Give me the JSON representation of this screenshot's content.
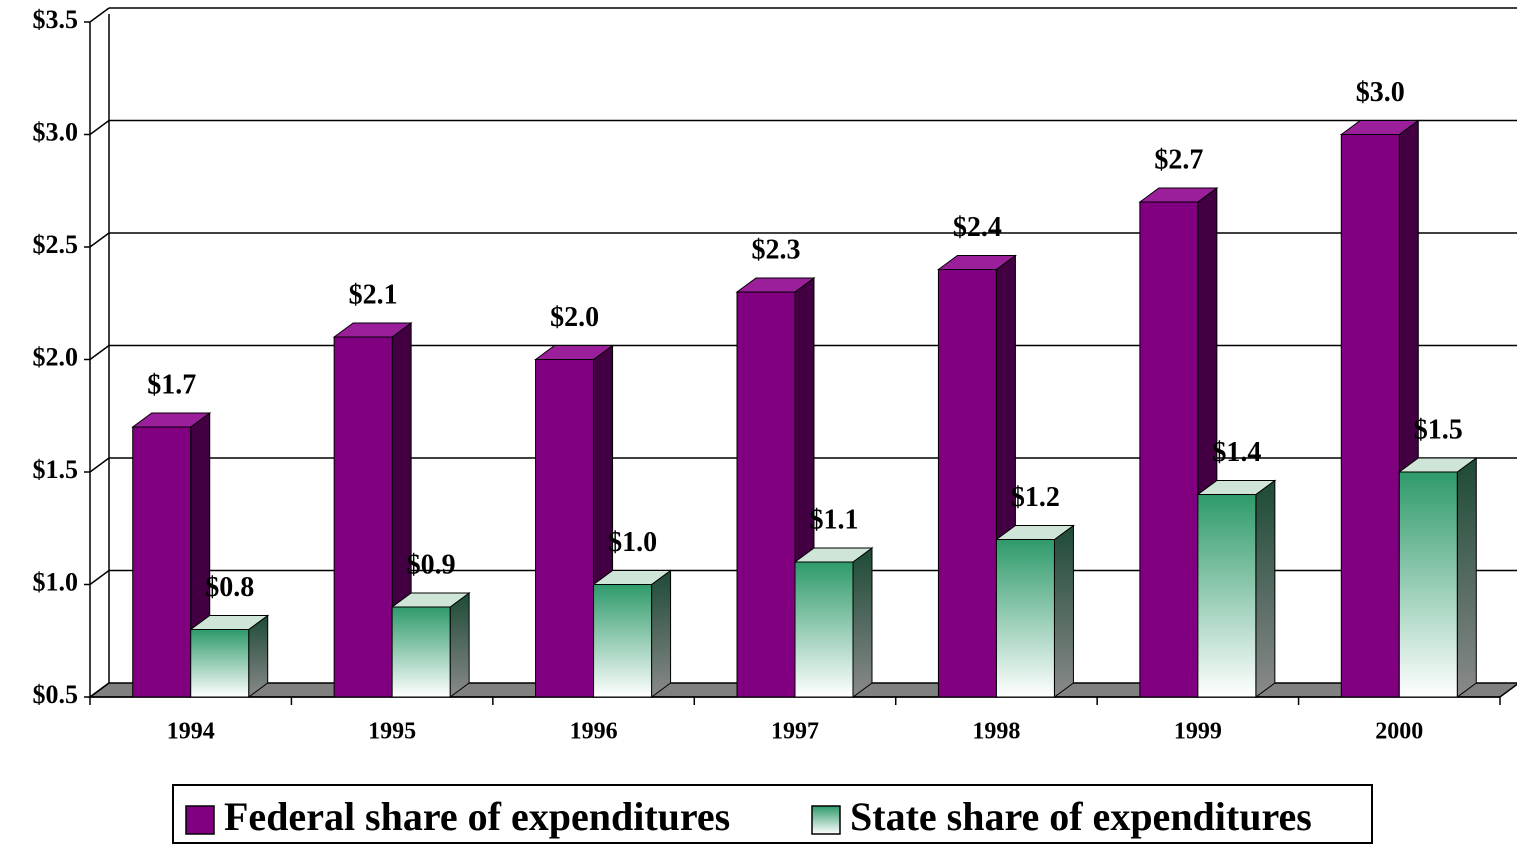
{
  "chart_data": {
    "type": "bar3d",
    "categories": [
      "1994",
      "1995",
      "1996",
      "1997",
      "1998",
      "1999",
      "2000"
    ],
    "series": [
      {
        "name": "Federal share of expenditures",
        "color": "#800080",
        "values": [
          1.7,
          2.1,
          2.0,
          2.3,
          2.4,
          2.7,
          3.0
        ],
        "value_labels": [
          "$1.7",
          "$2.1",
          "$2.0",
          "$2.3",
          "$2.4",
          "$2.7",
          "$3.0"
        ]
      },
      {
        "name": "State share of expenditures",
        "color": "#3a9e72",
        "values": [
          0.8,
          0.9,
          1.0,
          1.1,
          1.2,
          1.4,
          1.5
        ],
        "value_labels": [
          "$0.8",
          "$0.9",
          "$1.0",
          "$1.1",
          "$1.2",
          "$1.4",
          "$1.5"
        ]
      }
    ],
    "ylim": [
      0.5,
      3.5
    ],
    "yticks": [
      {
        "value": 0.5,
        "label": "$0.5"
      },
      {
        "value": 1.0,
        "label": "$1.0"
      },
      {
        "value": 1.5,
        "label": "$1.5"
      },
      {
        "value": 2.0,
        "label": "$2.0"
      },
      {
        "value": 2.5,
        "label": "$2.5"
      },
      {
        "value": 3.0,
        "label": "$3.0"
      },
      {
        "value": 3.5,
        "label": "$3.5"
      }
    ],
    "grid": true,
    "legend": "bottom"
  }
}
